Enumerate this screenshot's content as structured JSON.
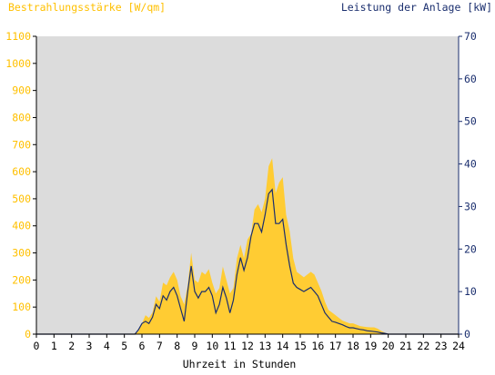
{
  "chart_data": {
    "type": "area",
    "title_left": "Bestrahlungsstärke [W/qm]",
    "title_right": "Leistung der Anlage [kW]",
    "xlabel": "Uhrzeit in Stunden",
    "grid": false,
    "plot_background": "#dcdcdc",
    "x_ticks": [
      "0",
      "1",
      "2",
      "3",
      "4",
      "5",
      "6",
      "7",
      "8",
      "9",
      "10",
      "11",
      "12",
      "13",
      "14",
      "15",
      "16",
      "17",
      "18",
      "19",
      "20",
      "21",
      "22",
      "23",
      "24"
    ],
    "xlim": [
      0,
      24
    ],
    "y_left": {
      "ticks": [
        "0",
        "100",
        "200",
        "300",
        "400",
        "500",
        "600",
        "700",
        "800",
        "900",
        "1000",
        "1100"
      ],
      "ylim": [
        0,
        1100
      ],
      "color": "#ffc000"
    },
    "y_right": {
      "ticks": [
        "0",
        "10",
        "20",
        "30",
        "40",
        "50",
        "60",
        "70"
      ],
      "ylim": [
        0,
        70
      ],
      "color": "#1a2e6e"
    },
    "series": [
      {
        "axis": "left",
        "style": "area",
        "color": "#ffcc33",
        "x": [
          0,
          5.5,
          5.8,
          6.0,
          6.2,
          6.4,
          6.6,
          6.8,
          7.0,
          7.2,
          7.4,
          7.6,
          7.8,
          8.0,
          8.2,
          8.4,
          8.6,
          8.8,
          9.0,
          9.2,
          9.4,
          9.6,
          9.8,
          10.0,
          10.2,
          10.4,
          10.6,
          10.8,
          11.0,
          11.2,
          11.4,
          11.6,
          11.8,
          12.0,
          12.2,
          12.4,
          12.6,
          12.8,
          13.0,
          13.2,
          13.4,
          13.6,
          13.8,
          14.0,
          14.2,
          14.4,
          14.6,
          14.8,
          15.0,
          15.2,
          15.4,
          15.6,
          15.8,
          16.0,
          16.2,
          16.4,
          16.6,
          16.8,
          17.0,
          17.2,
          17.4,
          17.6,
          17.8,
          18.0,
          18.2,
          18.4,
          18.6,
          18.8,
          19.0,
          19.2,
          19.4,
          19.6,
          19.8,
          20.0,
          24
        ],
        "values": [
          0,
          0,
          10,
          40,
          70,
          60,
          80,
          140,
          120,
          190,
          180,
          210,
          230,
          200,
          140,
          110,
          180,
          300,
          200,
          190,
          230,
          220,
          240,
          190,
          150,
          170,
          250,
          200,
          150,
          170,
          280,
          330,
          280,
          350,
          370,
          460,
          480,
          450,
          500,
          620,
          650,
          520,
          560,
          580,
          440,
          380,
          280,
          230,
          220,
          210,
          220,
          230,
          220,
          190,
          160,
          120,
          90,
          80,
          70,
          60,
          50,
          45,
          40,
          40,
          35,
          30,
          28,
          26,
          25,
          25,
          20,
          12,
          6,
          0,
          0
        ]
      },
      {
        "axis": "right",
        "style": "line",
        "color": "#1a2e6e",
        "x": [
          0,
          5.6,
          5.8,
          6.0,
          6.2,
          6.4,
          6.6,
          6.8,
          7.0,
          7.2,
          7.4,
          7.6,
          7.8,
          8.0,
          8.2,
          8.4,
          8.6,
          8.8,
          9.0,
          9.2,
          9.4,
          9.6,
          9.8,
          10.0,
          10.2,
          10.4,
          10.6,
          10.8,
          11.0,
          11.2,
          11.4,
          11.6,
          11.8,
          12.0,
          12.2,
          12.4,
          12.6,
          12.8,
          13.0,
          13.2,
          13.4,
          13.6,
          13.8,
          14.0,
          14.2,
          14.4,
          14.6,
          14.8,
          15.0,
          15.2,
          15.4,
          15.6,
          15.8,
          16.0,
          16.2,
          16.4,
          16.6,
          16.8,
          17.0,
          17.2,
          17.4,
          17.6,
          17.8,
          18.0,
          18.2,
          18.4,
          18.6,
          18.8,
          19.0,
          19.2,
          19.4,
          19.6,
          19.8,
          20.0,
          24
        ],
        "values": [
          0,
          0,
          1,
          2.5,
          3,
          2.5,
          4,
          7,
          6,
          9,
          8,
          10,
          11,
          9,
          6,
          3,
          10,
          16,
          10,
          8.5,
          10,
          10,
          11,
          9,
          5,
          7,
          11,
          8.5,
          5,
          8,
          14,
          18,
          15,
          18,
          23,
          26,
          26,
          24,
          28,
          33,
          34,
          26,
          26,
          27,
          21,
          16,
          12,
          11,
          10.5,
          10,
          10.5,
          11,
          10,
          9,
          7,
          5,
          4,
          3,
          2.8,
          2.5,
          2.2,
          1.8,
          1.5,
          1.5,
          1.3,
          1.1,
          1.0,
          0.8,
          0.7,
          0.6,
          0.5,
          0.3,
          0.2,
          0,
          0
        ]
      }
    ]
  }
}
